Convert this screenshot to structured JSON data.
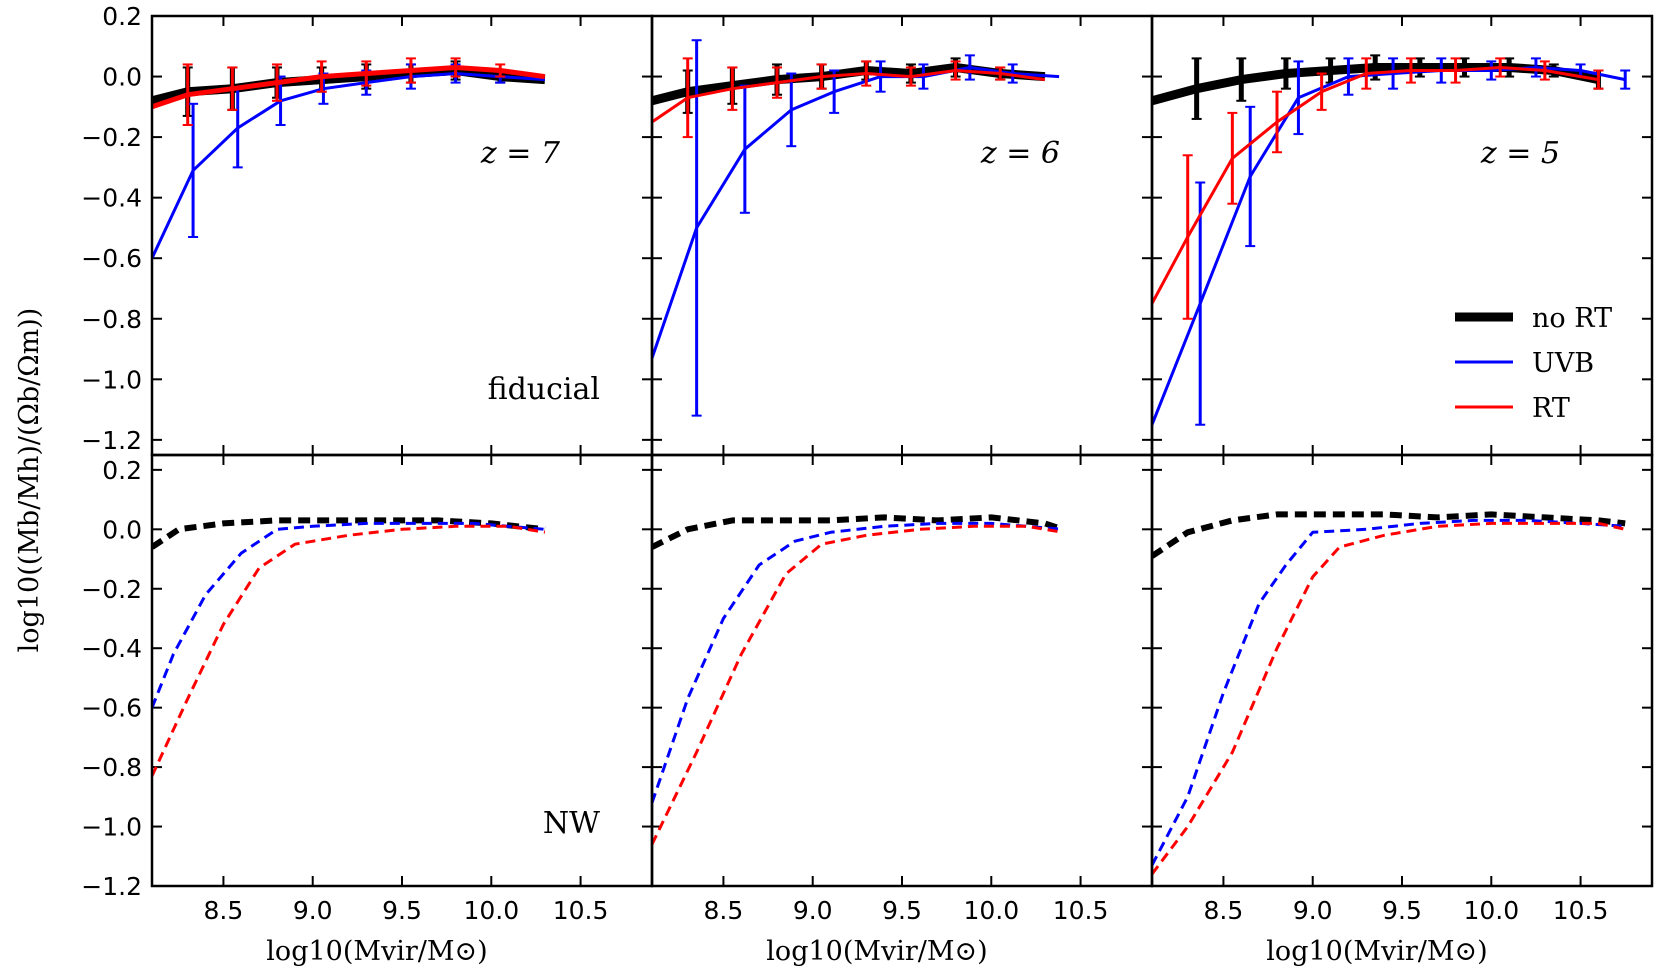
{
  "figure": {
    "ylabel": "log10((Mb/Mh)/(Ωb/Ωm))",
    "xlabel": "log10(Mvir/M⊙)",
    "legend": {
      "position": "lower-right of top-right panel",
      "entries": [
        {
          "label": "no RT",
          "color": "#000000"
        },
        {
          "label": "UVB",
          "color": "#0000ff"
        },
        {
          "label": "RT",
          "color": "#ff0000"
        }
      ]
    },
    "row_labels": [
      "fiducial",
      "NW"
    ],
    "column_labels": [
      "z = 7",
      "z = 6",
      "z = 5"
    ],
    "xticks": [
      "8.5",
      "9.0",
      "9.5",
      "10.0",
      "10.5"
    ],
    "xlim": [
      8.1,
      10.9
    ],
    "top_yticks": [
      "0.2",
      "0.0",
      "−0.2",
      "−0.4",
      "−0.6",
      "−0.8",
      "−1.0",
      "−1.2"
    ],
    "top_ylim": [
      -1.25,
      0.2
    ],
    "bottom_yticks": [
      "0.2",
      "0.0",
      "−0.2",
      "−0.4",
      "−0.6",
      "−0.8",
      "−1.0",
      "−1.2"
    ],
    "bottom_ylim": [
      -1.2,
      0.25
    ]
  },
  "chart_data": [
    {
      "type": "line",
      "row": "fiducial",
      "column": "z = 7",
      "series": [
        {
          "name": "no RT",
          "color": "#000000",
          "style": "solid-thick",
          "x": [
            8.1,
            8.3,
            8.55,
            8.8,
            9.05,
            9.3,
            9.55,
            9.8,
            10.05,
            10.3
          ],
          "y": [
            -0.08,
            -0.05,
            -0.04,
            -0.02,
            -0.01,
            0.0,
            0.01,
            0.02,
            0.0,
            -0.01
          ],
          "err": [
            0,
            0.08,
            0.07,
            0.05,
            0.04,
            0.04,
            0.03,
            0.03,
            0.02,
            0
          ]
        },
        {
          "name": "UVB",
          "color": "#0000ff",
          "style": "solid",
          "x": [
            8.1,
            8.33,
            8.58,
            8.82,
            9.06,
            9.3,
            9.55,
            9.8,
            10.05,
            10.3
          ],
          "y": [
            -0.6,
            -0.31,
            -0.17,
            -0.08,
            -0.04,
            -0.02,
            0.0,
            0.01,
            0.0,
            -0.01
          ],
          "err": [
            0,
            0.22,
            0.13,
            0.08,
            0.05,
            0.04,
            0.04,
            0.03,
            0.02,
            0
          ]
        },
        {
          "name": "RT",
          "color": "#ff0000",
          "style": "solid-thick",
          "x": [
            8.1,
            8.3,
            8.55,
            8.8,
            9.05,
            9.3,
            9.55,
            9.8,
            10.05,
            10.3
          ],
          "y": [
            -0.1,
            -0.06,
            -0.04,
            -0.02,
            0.0,
            0.01,
            0.02,
            0.03,
            0.02,
            0.0
          ],
          "err": [
            0,
            0.1,
            0.07,
            0.06,
            0.05,
            0.04,
            0.04,
            0.03,
            0.02,
            0
          ]
        }
      ]
    },
    {
      "type": "line",
      "row": "fiducial",
      "column": "z = 6",
      "series": [
        {
          "name": "no RT",
          "color": "#000000",
          "style": "solid-thick",
          "x": [
            8.1,
            8.3,
            8.55,
            8.8,
            9.05,
            9.3,
            9.55,
            9.8,
            10.05,
            10.3
          ],
          "y": [
            -0.08,
            -0.05,
            -0.03,
            -0.01,
            0.0,
            0.02,
            0.01,
            0.03,
            0.01,
            0.0
          ],
          "err": [
            0,
            0.07,
            0.06,
            0.05,
            0.04,
            0.03,
            0.03,
            0.03,
            0.02,
            0
          ]
        },
        {
          "name": "UVB",
          "color": "#0000ff",
          "style": "solid",
          "x": [
            8.1,
            8.35,
            8.62,
            8.88,
            9.12,
            9.38,
            9.62,
            9.88,
            10.12,
            10.38
          ],
          "y": [
            -0.93,
            -0.5,
            -0.24,
            -0.11,
            -0.05,
            0.0,
            0.0,
            0.03,
            0.01,
            0.0
          ],
          "err": [
            0,
            0.62,
            0.21,
            0.12,
            0.07,
            0.05,
            0.04,
            0.04,
            0.03,
            0
          ]
        },
        {
          "name": "RT",
          "color": "#ff0000",
          "style": "solid",
          "x": [
            8.1,
            8.3,
            8.55,
            8.8,
            9.05,
            9.3,
            9.55,
            9.8,
            10.05,
            10.3
          ],
          "y": [
            -0.15,
            -0.07,
            -0.04,
            -0.02,
            0.0,
            0.01,
            0.0,
            0.02,
            0.01,
            -0.01
          ],
          "err": [
            0,
            0.13,
            0.07,
            0.05,
            0.04,
            0.04,
            0.03,
            0.03,
            0.02,
            0
          ]
        }
      ]
    },
    {
      "type": "line",
      "row": "fiducial",
      "column": "z = 5",
      "series": [
        {
          "name": "no RT",
          "color": "#000000",
          "style": "solid-thick",
          "x": [
            8.1,
            8.35,
            8.6,
            8.85,
            9.1,
            9.35,
            9.6,
            9.85,
            10.1,
            10.35,
            10.6
          ],
          "y": [
            -0.08,
            -0.04,
            -0.01,
            0.01,
            0.02,
            0.03,
            0.03,
            0.03,
            0.03,
            0.02,
            -0.01
          ],
          "err": [
            0,
            0.1,
            0.07,
            0.05,
            0.04,
            0.04,
            0.03,
            0.03,
            0.03,
            0.02,
            0.03
          ]
        },
        {
          "name": "UVB",
          "color": "#0000ff",
          "style": "solid",
          "x": [
            8.1,
            8.37,
            8.65,
            8.92,
            9.2,
            9.45,
            9.72,
            10.0,
            10.25,
            10.5,
            10.75
          ],
          "y": [
            -1.15,
            -0.75,
            -0.33,
            -0.07,
            0.0,
            0.01,
            0.02,
            0.02,
            0.03,
            0.02,
            -0.01
          ],
          "err": [
            0,
            0.4,
            0.23,
            0.12,
            0.06,
            0.05,
            0.04,
            0.03,
            0.03,
            0.02,
            0.03
          ]
        },
        {
          "name": "RT",
          "color": "#ff0000",
          "style": "solid",
          "x": [
            8.1,
            8.3,
            8.55,
            8.8,
            9.05,
            9.3,
            9.55,
            9.8,
            10.05,
            10.3,
            10.6
          ],
          "y": [
            -0.75,
            -0.53,
            -0.27,
            -0.15,
            -0.05,
            0.01,
            0.02,
            0.02,
            0.03,
            0.02,
            -0.01
          ],
          "err": [
            0,
            0.27,
            0.15,
            0.1,
            0.06,
            0.05,
            0.04,
            0.04,
            0.03,
            0.03,
            0.03
          ]
        }
      ]
    },
    {
      "type": "line",
      "row": "NW",
      "column": "z = 7",
      "series": [
        {
          "name": "no RT",
          "color": "#000000",
          "style": "dashed-thick",
          "x": [
            8.1,
            8.25,
            8.5,
            8.8,
            9.1,
            9.4,
            9.7,
            10.0,
            10.3
          ],
          "y": [
            -0.06,
            0.0,
            0.02,
            0.03,
            0.03,
            0.03,
            0.03,
            0.02,
            0.0
          ]
        },
        {
          "name": "UVB",
          "color": "#0000ff",
          "style": "dashed",
          "x": [
            8.1,
            8.22,
            8.4,
            8.6,
            8.8,
            9.0,
            9.3,
            9.6,
            9.9,
            10.3
          ],
          "y": [
            -0.6,
            -0.42,
            -0.22,
            -0.08,
            0.0,
            0.01,
            0.02,
            0.02,
            0.02,
            0.0
          ]
        },
        {
          "name": "RT",
          "color": "#ff0000",
          "style": "dashed",
          "x": [
            8.1,
            8.3,
            8.5,
            8.7,
            8.9,
            9.2,
            9.5,
            9.8,
            10.1,
            10.3
          ],
          "y": [
            -0.83,
            -0.57,
            -0.32,
            -0.13,
            -0.05,
            -0.02,
            0.0,
            0.01,
            0.01,
            -0.01
          ]
        }
      ]
    },
    {
      "type": "line",
      "row": "NW",
      "column": "z = 6",
      "series": [
        {
          "name": "no RT",
          "color": "#000000",
          "style": "dashed-thick",
          "x": [
            8.1,
            8.3,
            8.55,
            8.8,
            9.1,
            9.4,
            9.7,
            10.0,
            10.3,
            10.4
          ],
          "y": [
            -0.06,
            0.0,
            0.03,
            0.03,
            0.03,
            0.04,
            0.03,
            0.04,
            0.02,
            0.0
          ]
        },
        {
          "name": "UVB",
          "color": "#0000ff",
          "style": "dashed",
          "x": [
            8.1,
            8.3,
            8.5,
            8.7,
            8.9,
            9.1,
            9.4,
            9.7,
            10.0,
            10.4
          ],
          "y": [
            -0.92,
            -0.57,
            -0.3,
            -0.12,
            -0.04,
            -0.01,
            0.01,
            0.02,
            0.02,
            0.0
          ]
        },
        {
          "name": "RT",
          "color": "#ff0000",
          "style": "dashed",
          "x": [
            8.1,
            8.35,
            8.6,
            8.85,
            9.05,
            9.3,
            9.6,
            9.9,
            10.2,
            10.4
          ],
          "y": [
            -1.06,
            -0.75,
            -0.42,
            -0.15,
            -0.05,
            -0.02,
            0.0,
            0.01,
            0.01,
            -0.01
          ]
        }
      ]
    },
    {
      "type": "line",
      "row": "NW",
      "column": "z = 5",
      "series": [
        {
          "name": "no RT",
          "color": "#000000",
          "style": "dashed-thick",
          "x": [
            8.1,
            8.3,
            8.55,
            8.8,
            9.1,
            9.4,
            9.7,
            10.0,
            10.3,
            10.6,
            10.75
          ],
          "y": [
            -0.09,
            -0.01,
            0.03,
            0.05,
            0.05,
            0.05,
            0.04,
            0.05,
            0.04,
            0.03,
            0.02
          ]
        },
        {
          "name": "UVB",
          "color": "#0000ff",
          "style": "dashed",
          "x": [
            8.1,
            8.3,
            8.5,
            8.7,
            8.85,
            9.0,
            9.3,
            9.6,
            9.9,
            10.2,
            10.5,
            10.75
          ],
          "y": [
            -1.13,
            -0.9,
            -0.55,
            -0.25,
            -0.12,
            -0.01,
            0.0,
            0.02,
            0.03,
            0.03,
            0.02,
            0.01
          ]
        },
        {
          "name": "RT",
          "color": "#ff0000",
          "style": "dashed",
          "x": [
            8.1,
            8.3,
            8.55,
            8.8,
            9.0,
            9.15,
            9.4,
            9.7,
            10.0,
            10.3,
            10.6,
            10.75
          ],
          "y": [
            -1.16,
            -1.0,
            -0.75,
            -0.4,
            -0.16,
            -0.06,
            -0.02,
            0.01,
            0.02,
            0.02,
            0.02,
            0.0
          ]
        }
      ]
    }
  ]
}
